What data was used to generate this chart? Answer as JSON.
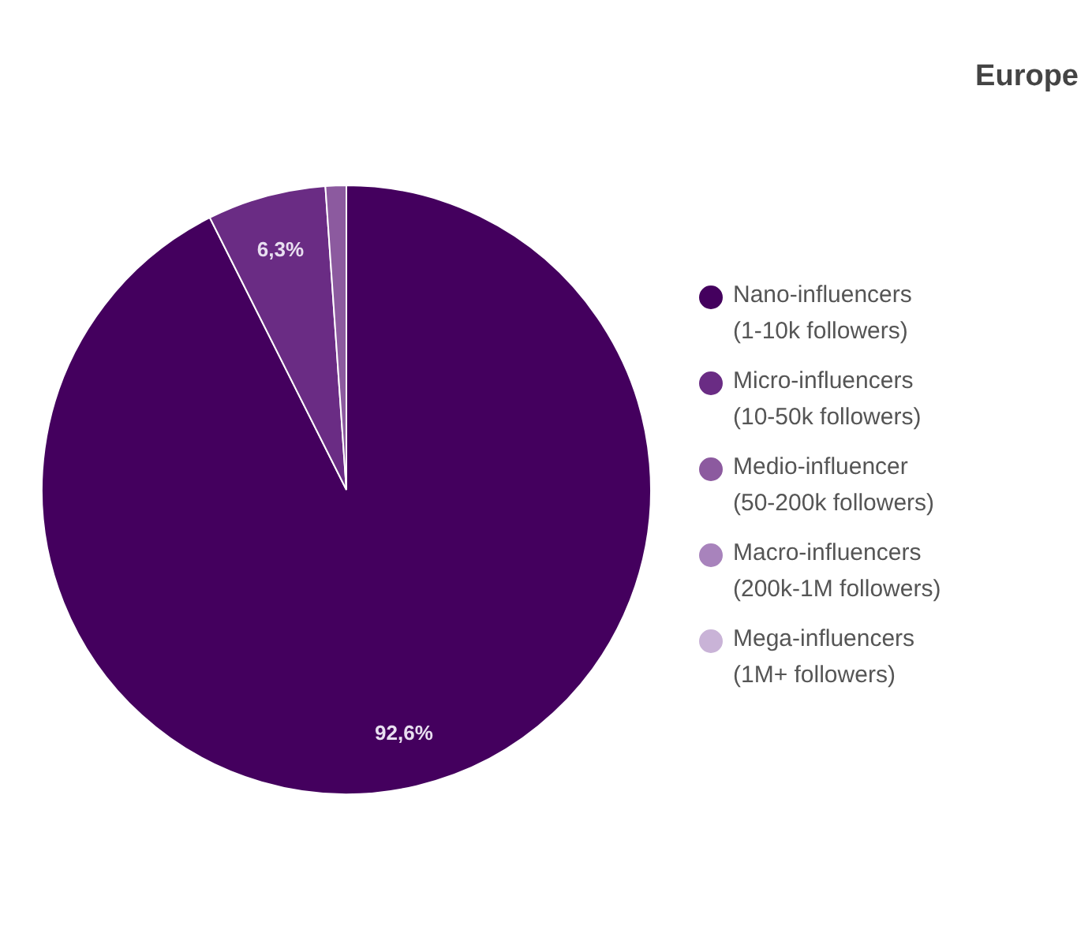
{
  "chart_data": {
    "type": "pie",
    "title": "Europe",
    "categories": [
      "Nano-influencers (1-10k followers)",
      "Micro-influencers (10-50k followers)",
      "Medio-influencer (50-200k followers)",
      "Macro-influencers (200k-1M followers)",
      "Mega-influencers (1M+ followers)"
    ],
    "values": [
      92.6,
      6.3,
      1.1,
      0,
      0
    ],
    "value_labels": [
      "92,6%",
      "6,3%",
      null,
      null,
      null
    ],
    "colors": [
      "#44005e",
      "#6a2c84",
      "#8c5a9f",
      "#a883bc",
      "#c9b3d7"
    ],
    "legend": "right"
  }
}
